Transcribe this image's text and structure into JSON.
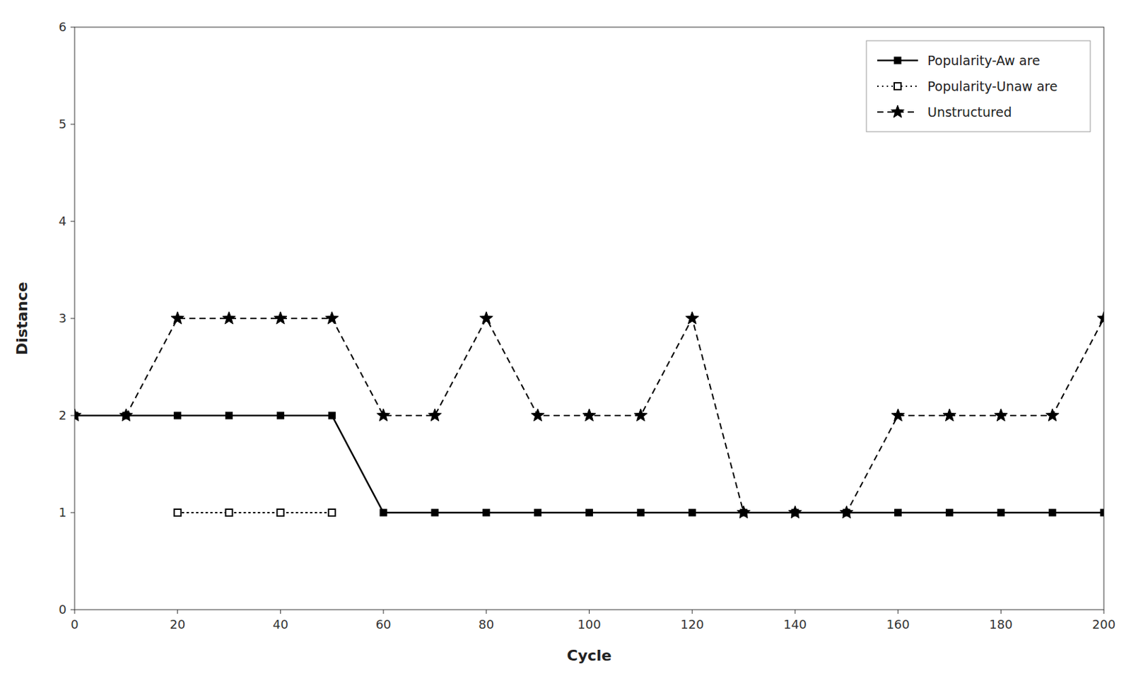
{
  "chart_data": {
    "type": "line",
    "xlabel": "Cycle",
    "ylabel": "Distance",
    "xlim": [
      0,
      200
    ],
    "ylim": [
      0,
      6
    ],
    "xticks": [
      0,
      20,
      40,
      60,
      80,
      100,
      120,
      140,
      160,
      180,
      200
    ],
    "yticks": [
      0,
      1,
      2,
      3,
      4,
      5,
      6
    ],
    "grid": false,
    "legend": "upper right",
    "series": [
      {
        "name": "Popularity-Aw are",
        "color": "#000000",
        "marker": "square",
        "line_style": "solid",
        "x": [
          0,
          10,
          20,
          30,
          40,
          50,
          60,
          70,
          80,
          90,
          100,
          110,
          120,
          130,
          140,
          150,
          160,
          170,
          180,
          190,
          200
        ],
        "values": [
          2,
          2,
          2,
          2,
          2,
          2,
          1,
          1,
          1,
          1,
          1,
          1,
          1,
          1,
          1,
          1,
          1,
          1,
          1,
          1,
          1
        ]
      },
      {
        "name": "Popularity-Unaw are",
        "color": "#000000",
        "marker": "open-square",
        "line_style": "dotted",
        "x": [
          20,
          30,
          40,
          50
        ],
        "values": [
          1,
          1,
          1,
          1
        ]
      },
      {
        "name": "Unstructured",
        "color": "#000000",
        "marker": "star",
        "line_style": "dashed",
        "x": [
          0,
          10,
          20,
          30,
          40,
          50,
          60,
          70,
          80,
          90,
          100,
          110,
          120,
          130,
          140,
          150,
          160,
          170,
          180,
          190,
          200
        ],
        "values": [
          2,
          2,
          3,
          3,
          3,
          3,
          2,
          2,
          3,
          2,
          2,
          2,
          3,
          1,
          1,
          1,
          2,
          2,
          2,
          2,
          3
        ]
      }
    ]
  }
}
